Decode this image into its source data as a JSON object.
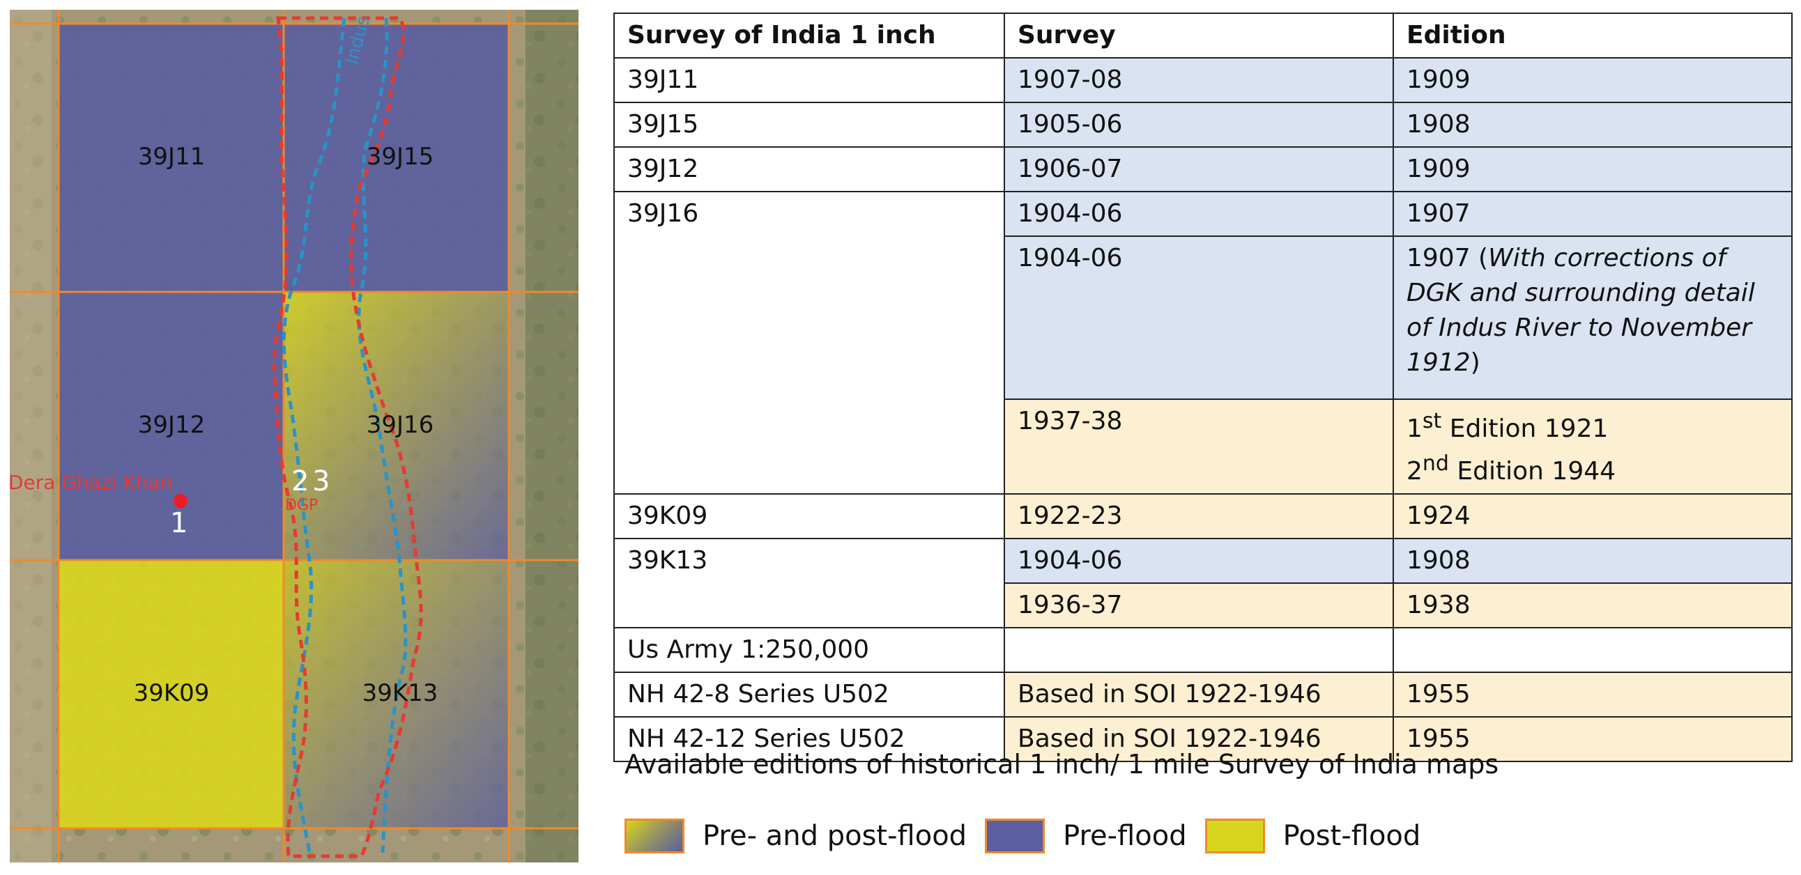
{
  "map": {
    "colors": {
      "pre_flood": "#5b5f9f",
      "post_flood": "#d8d51e",
      "grid_line": "#f08a2a",
      "river_pre": "#2a93c8",
      "river_post": "#e63a32",
      "satellite_ground": "#9a8f71"
    },
    "tiles": [
      {
        "label": "39J11",
        "status": "pre-flood"
      },
      {
        "label": "39J15",
        "status": "pre-flood"
      },
      {
        "label": "39J12",
        "status": "pre-flood"
      },
      {
        "label": "39J16",
        "status": "pre- and post-flood"
      },
      {
        "label": "39K09",
        "status": "post-flood"
      },
      {
        "label": "39K13",
        "status": "pre- and post-flood"
      }
    ],
    "river_label": "Indus",
    "city_label": "Dera Ghazi Khan",
    "dgp_label": "DGP",
    "points": [
      "1",
      "2",
      "3"
    ]
  },
  "table": {
    "headers": [
      "Survey of India 1 inch",
      "Survey",
      "Edition"
    ],
    "rows": [
      {
        "sheet": "39J11",
        "survey": "1907-08",
        "edition": "1909"
      },
      {
        "sheet": "39J15",
        "survey": "1905-06",
        "edition": "1908"
      },
      {
        "sheet": "39J12",
        "survey": "1906-07",
        "edition": "1909"
      },
      {
        "sheet": "39J16",
        "entries": [
          {
            "survey": "1904-06",
            "edition": "1907"
          },
          {
            "survey": "1904-06",
            "edition_prefix": "1907 (",
            "edition_italic": "With corrections of DGK and surrounding detail of Indus River to November 1912",
            "edition_suffix": ")"
          },
          {
            "survey": "1937-38",
            "edition_line1": {
              "num": "1",
              "sup": "st",
              "text": " Edition 1921"
            },
            "edition_line2": {
              "num": "2",
              "sup": "nd",
              "text": " Edition 1944"
            }
          }
        ]
      },
      {
        "sheet": "39K09",
        "survey": "1922-23",
        "edition": "1924"
      },
      {
        "sheet": "39K13",
        "entries": [
          {
            "survey": "1904-06",
            "edition": "1908"
          },
          {
            "survey": "1936-37",
            "edition": "1938"
          }
        ]
      },
      {
        "section": "Us Army 1:250,000"
      },
      {
        "sheet": "NH 42-8 Series U502",
        "survey": "Based in SOI 1922-1946",
        "edition": "1955"
      },
      {
        "sheet": "NH 42-12 Series U502",
        "survey": "Based in SOI 1922-1946",
        "edition": "1955"
      }
    ]
  },
  "caption": "Available editions of historical 1 inch/ 1 mile Survey of India maps",
  "legend": [
    {
      "label": "Pre- and post-flood",
      "icon": "gradient-swatch"
    },
    {
      "label": "Pre-flood",
      "icon": "blue-swatch"
    },
    {
      "label": "Post-flood",
      "icon": "yellow-swatch"
    }
  ]
}
